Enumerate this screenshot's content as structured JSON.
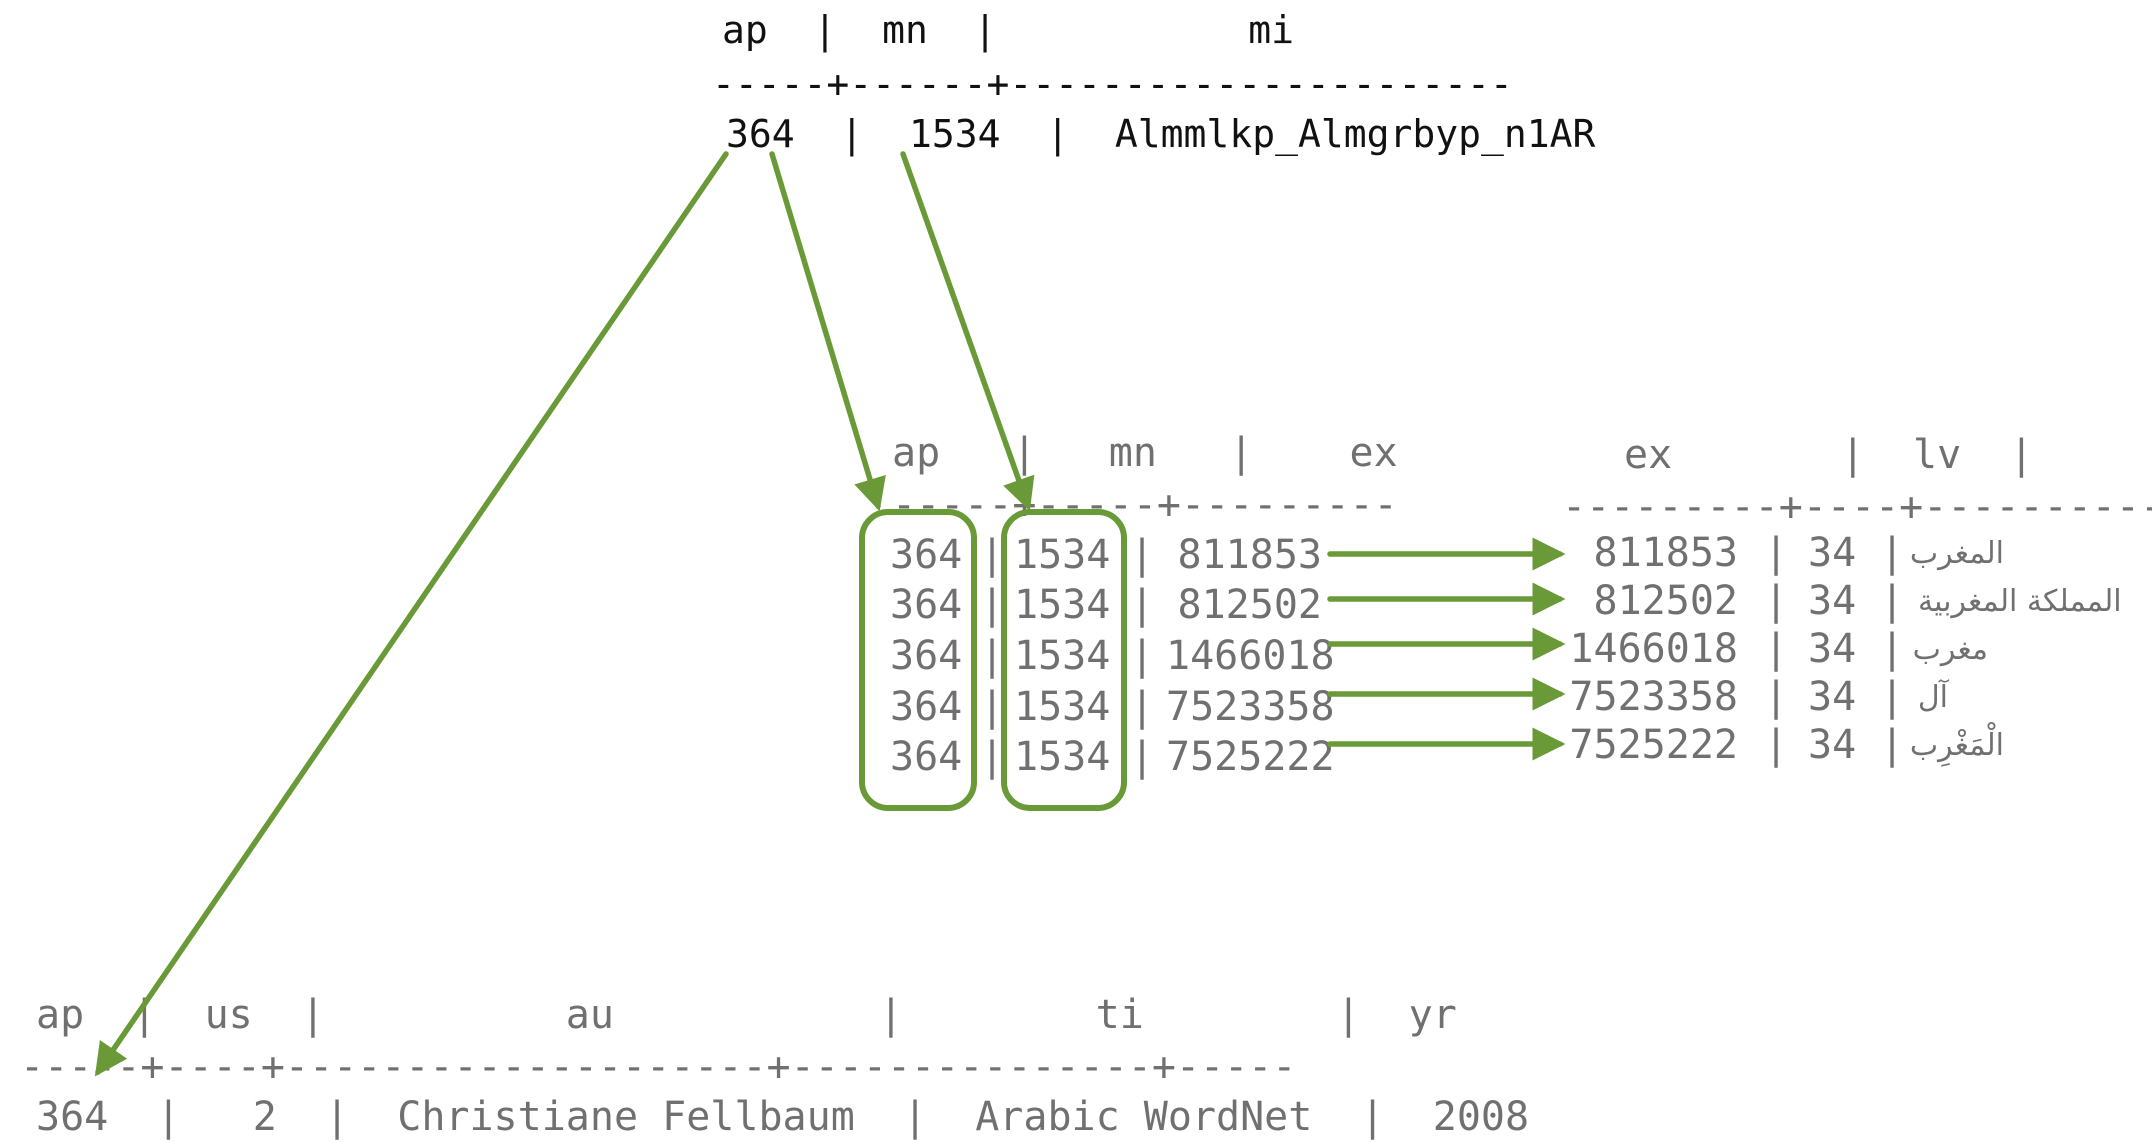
{
  "top_table": {
    "header": "ap  |  mn  |           mi",
    "separator": "-----+------+----------------------",
    "row": "364  |  1534  |  Almmlkp_Almgrbyp_n1AR"
  },
  "middle_table": {
    "header": "ap   |   mn   |    ex",
    "separator": "-----+-----+---------",
    "rows": [
      {
        "ap": "364",
        "mn": "1534",
        "ex": "811853"
      },
      {
        "ap": "364",
        "mn": "1534",
        "ex": "812502"
      },
      {
        "ap": "364",
        "mn": "1534",
        "ex": "1466018"
      },
      {
        "ap": "364",
        "mn": "1534",
        "ex": "7523358"
      },
      {
        "ap": "364",
        "mn": "1534",
        "ex": "7525222"
      }
    ]
  },
  "right_table": {
    "header": "ex       |  lv  |     tt",
    "separator": "---------+----+-----------",
    "rows": [
      {
        "ex": "811853",
        "lv": "34",
        "tt": "المغرب"
      },
      {
        "ex": "812502",
        "lv": "34",
        "tt": "المملكة المغربية"
      },
      {
        "ex": "1466018",
        "lv": "34",
        "tt": "مغرب"
      },
      {
        "ex": "7523358",
        "lv": "34",
        "tt": "آل"
      },
      {
        "ex": "7525222",
        "lv": "34",
        "tt": "الْمَغْرِب"
      }
    ]
  },
  "bottom_table": {
    "header": "ap  |  us  |          au           |        ti        |  yr",
    "separator": "-----+----+--------------------+---------------+-----",
    "row": "364  |   2  |  Christiane Fellbaum  |  Arabic WordNet  |  2008"
  },
  "colors": {
    "arrow": "#6a9a37"
  }
}
